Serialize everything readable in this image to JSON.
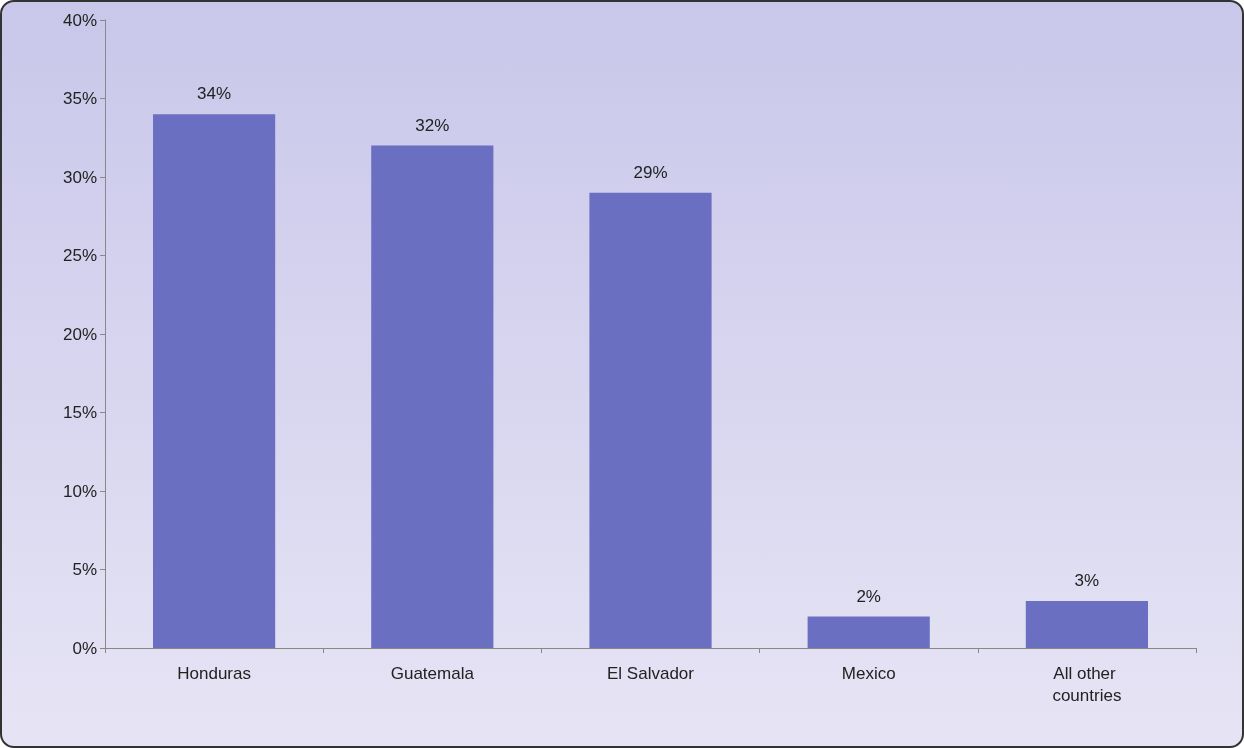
{
  "chart_data": {
    "type": "bar",
    "categories": [
      "Honduras",
      "Guatemala",
      "El Salvador",
      "Mexico",
      "All other countries"
    ],
    "values": [
      34,
      32,
      29,
      2,
      3
    ],
    "value_labels": [
      "34%",
      "32%",
      "29%",
      "2%",
      "3%"
    ],
    "color": "#6b6fc2",
    "ylim": [
      0,
      40
    ],
    "yticks": [
      {
        "value": 0,
        "label": "0%"
      },
      {
        "value": 5,
        "label": "5%"
      },
      {
        "value": 10,
        "label": "10%"
      },
      {
        "value": 15,
        "label": "15%"
      },
      {
        "value": 20,
        "label": "20%"
      },
      {
        "value": 25,
        "label": "25%"
      },
      {
        "value": 30,
        "label": "30%"
      },
      {
        "value": 35,
        "label": "35%"
      },
      {
        "value": 40,
        "label": "40%"
      }
    ],
    "grid": false
  }
}
